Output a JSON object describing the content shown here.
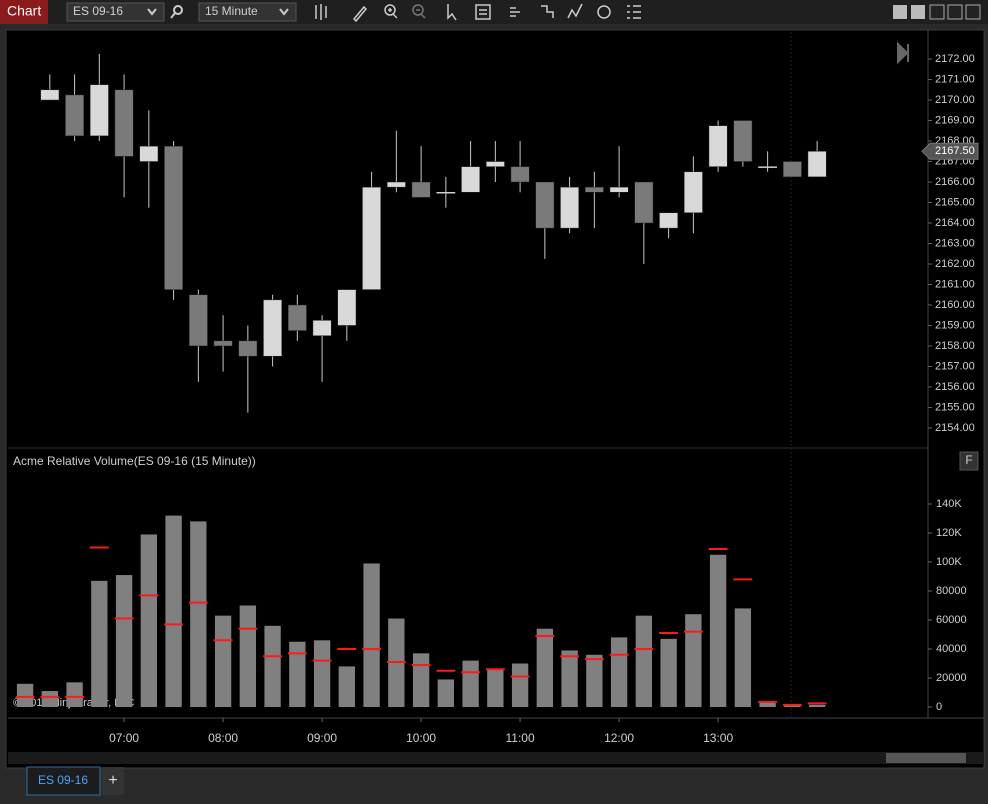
{
  "toolbar": {
    "title": "Chart",
    "instrument": "ES 09-16",
    "interval": "15 Minute"
  },
  "chart_data": [
    {
      "type": "candlestick",
      "open": [
        null,
        2170,
        2170.25,
        2168.25,
        2170.5,
        2167,
        2167.75,
        2160.5,
        2158.25,
        2158.25,
        2157.5,
        2160,
        2158.5,
        2159,
        2160.75,
        2165.75,
        2166,
        2165.5,
        2165.5,
        2166.75,
        2166.75,
        2166,
        2163.75,
        2165.75,
        2165.5,
        2166,
        2163.75,
        2164.5,
        2166.75,
        2169,
        2166.75,
        2167,
        2166.25
      ],
      "high": [
        null,
        2171.25,
        2171.25,
        2172.25,
        2171.25,
        2169.5,
        2168,
        2160.75,
        2159.5,
        2159,
        2160.5,
        2160.5,
        2159.5,
        2160.75,
        2166.5,
        2168.5,
        2167.75,
        2166.25,
        2168,
        2168,
        2168,
        2166,
        2166.25,
        2166.5,
        2167.75,
        2166,
        2164.5,
        2167.25,
        2169,
        2169,
        2167.5,
        2167,
        2168
      ],
      "low": [
        null,
        2170,
        2168,
        2168,
        2165.25,
        2164.75,
        2160.25,
        2156.25,
        2156.75,
        2154.75,
        2157,
        2158.25,
        2156.25,
        2158.25,
        2160.75,
        2165.5,
        2165.25,
        2164.75,
        2165.5,
        2166,
        2165.5,
        2162.25,
        2163.5,
        2163.75,
        2165.25,
        2162,
        2163.25,
        2163.5,
        2166.5,
        2166.75,
        2166.5,
        2166.25,
        2166.25
      ],
      "close": [
        null,
        2170.5,
        2168.25,
        2170.75,
        2167.25,
        2167.75,
        2160.75,
        2158,
        2158,
        2157.5,
        2160.25,
        2158.75,
        2159.25,
        2160.75,
        2165.75,
        2166,
        2165.25,
        2165.5,
        2166.75,
        2167,
        2166,
        2163.75,
        2165.75,
        2165.5,
        2165.75,
        2164,
        2164.5,
        2166.5,
        2168.75,
        2167,
        2166.75,
        2166.25,
        2167.5
      ],
      "up_color": "#d9d9d9",
      "down_color": "#7a7a7a",
      "wick_color": "#c8c8c8",
      "xlim": [
        -0.69,
        36.48
      ],
      "ylim": [
        2153.07,
        2173.32
      ],
      "yticks": [
        {
          "value": 2154,
          "label": "2154.00"
        },
        {
          "value": 2155,
          "label": "2155.00"
        },
        {
          "value": 2156,
          "label": "2156.00"
        },
        {
          "value": 2157,
          "label": "2157.00"
        },
        {
          "value": 2158,
          "label": "2158.00"
        },
        {
          "value": 2159,
          "label": "2159.00"
        },
        {
          "value": 2160,
          "label": "2160.00"
        },
        {
          "value": 2161,
          "label": "2161.00"
        },
        {
          "value": 2162,
          "label": "2162.00"
        },
        {
          "value": 2163,
          "label": "2163.00"
        },
        {
          "value": 2164,
          "label": "2164.00"
        },
        {
          "value": 2165,
          "label": "2165.00"
        },
        {
          "value": 2166,
          "label": "2166.00"
        },
        {
          "value": 2167,
          "label": "2167.00"
        },
        {
          "value": 2168,
          "label": "2168.00"
        },
        {
          "value": 2169,
          "label": "2169.00"
        },
        {
          "value": 2170,
          "label": "2170.00"
        },
        {
          "value": 2171,
          "label": "2171.00"
        },
        {
          "value": 2172,
          "label": "2172.00"
        }
      ],
      "last_price": {
        "value": 2167.5,
        "label": "2167.50"
      }
    },
    {
      "type": "bar",
      "title": "Acme Relative Volume(ES 09-16 (15 Minute))",
      "values": [
        16000,
        11000,
        17000,
        87000,
        91000,
        119000,
        132000,
        128000,
        63000,
        70000,
        56000,
        45000,
        46000,
        28000,
        99000,
        61000,
        37000,
        19000,
        32000,
        26000,
        30000,
        54000,
        39000,
        36000,
        48000,
        63000,
        47000,
        64000,
        105000,
        68000,
        3000,
        1500,
        1500
      ],
      "average": [
        7000,
        7000,
        7000,
        110000,
        61000,
        77000,
        57000,
        72000,
        46000,
        54000,
        35000,
        37000,
        32000,
        40000,
        40000,
        31000,
        29000,
        25000,
        24000,
        26000,
        21000,
        49000,
        35000,
        33000,
        36000,
        40000,
        51000,
        52000,
        109000,
        88000,
        3500,
        1500,
        2500
      ],
      "color": "#808080",
      "average_color": "#ff1a1a",
      "xlim": [
        -0.69,
        36.48
      ],
      "xticks": [
        {
          "value": 4,
          "label": "07:00"
        },
        {
          "value": 8,
          "label": "08:00"
        },
        {
          "value": 12,
          "label": "09:00"
        },
        {
          "value": 16,
          "label": "10:00"
        },
        {
          "value": 20,
          "label": "11:00"
        },
        {
          "value": 24,
          "label": "12:00"
        },
        {
          "value": 28,
          "label": "13:00"
        }
      ],
      "ylim": [
        -7586,
        177241
      ],
      "yticks": [
        0,
        20000,
        40000,
        60000,
        80000,
        {
          "value": 100000,
          "label": "100K"
        },
        {
          "value": 120000,
          "label": "120K"
        },
        {
          "value": 140000,
          "label": "140K"
        }
      ]
    }
  ],
  "panel_button": "F",
  "copyright": "© 2016 NinjaTrader, LLC",
  "tabs": [
    "ES 09-16"
  ],
  "add_tab": "+"
}
